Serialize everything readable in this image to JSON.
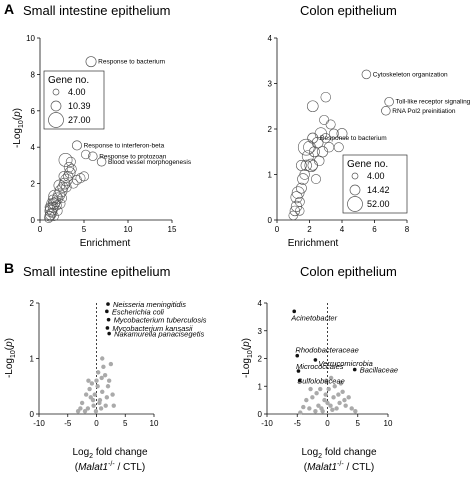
{
  "panels": {
    "A": {
      "letter": "A"
    },
    "B": {
      "letter": "B"
    }
  },
  "chart_data": [
    {
      "id": "a1",
      "type": "scatter",
      "title": "Small intestine epithelium",
      "xlabel": "Enrichment",
      "ylabel_main": "-Log",
      "ylabel_sub": "10",
      "ylabel_var": "p",
      "xlim": [
        0,
        15
      ],
      "ylim": [
        0,
        10
      ],
      "xticks": [
        0,
        5,
        10,
        15
      ],
      "yticks": [
        0,
        2,
        4,
        6,
        8,
        10
      ],
      "legend": {
        "title": "Gene no.",
        "entries": [
          "4.00",
          "10.39",
          "27.00"
        ]
      },
      "annotated": [
        {
          "x": 5.8,
          "y": 8.7,
          "size": 7,
          "label": "Response to bacterium"
        },
        {
          "x": 4.2,
          "y": 4.1,
          "size": 5,
          "label": "Response to interferon-beta"
        },
        {
          "x": 6.0,
          "y": 3.5,
          "size": 4,
          "label": "Response to protozoan"
        },
        {
          "x": 7.0,
          "y": 3.2,
          "size": 4,
          "label": "Blood vessel morphogenesis"
        }
      ],
      "points": [
        [
          1.0,
          0.1,
          4
        ],
        [
          1.1,
          0.2,
          6
        ],
        [
          1.2,
          0.3,
          8
        ],
        [
          1.2,
          0.5,
          10
        ],
        [
          1.3,
          0.6,
          12
        ],
        [
          1.4,
          0.4,
          5
        ],
        [
          1.5,
          0.7,
          7
        ],
        [
          1.6,
          0.9,
          9
        ],
        [
          1.8,
          1.0,
          6
        ],
        [
          2.0,
          1.2,
          8
        ],
        [
          2.2,
          1.4,
          10
        ],
        [
          2.4,
          1.6,
          12
        ],
        [
          1.7,
          1.3,
          14
        ],
        [
          2.6,
          1.8,
          7
        ],
        [
          2.8,
          2.0,
          9
        ],
        [
          3.0,
          2.2,
          11
        ],
        [
          3.2,
          2.4,
          6
        ],
        [
          3.4,
          2.6,
          8
        ],
        [
          3.6,
          2.8,
          5
        ],
        [
          3.0,
          1.8,
          6
        ],
        [
          2.5,
          1.2,
          5
        ],
        [
          1.9,
          0.8,
          5
        ],
        [
          1.5,
          1.1,
          7
        ],
        [
          1.3,
          0.9,
          6
        ],
        [
          2.9,
          3.3,
          16
        ],
        [
          3.3,
          2.9,
          6
        ],
        [
          4.2,
          2.2,
          5
        ],
        [
          4.6,
          2.3,
          5
        ],
        [
          5.0,
          2.4,
          5
        ],
        [
          3.8,
          2.0,
          5
        ],
        [
          2.2,
          1.9,
          9
        ],
        [
          1.1,
          0.7,
          5
        ],
        [
          2.7,
          2.4,
          6
        ],
        [
          3.5,
          3.2,
          5
        ],
        [
          5.2,
          3.6,
          4
        ],
        [
          1.6,
          0.2,
          4
        ],
        [
          2.0,
          0.5,
          5
        ],
        [
          2.3,
          0.9,
          6
        ]
      ]
    },
    {
      "id": "a2",
      "type": "scatter",
      "title": "Colon epithelium",
      "xlabel": "Enrichment",
      "ylabel_main": "",
      "ylabel_sub": "",
      "ylabel_var": "",
      "xlim": [
        0,
        8
      ],
      "ylim": [
        0,
        4
      ],
      "xticks": [
        0,
        2,
        4,
        6,
        8
      ],
      "yticks": [
        0,
        1,
        2,
        3,
        4
      ],
      "legend": {
        "title": "Gene no.",
        "entries": [
          "4.00",
          "14.42",
          "52.00"
        ]
      },
      "annotated": [
        {
          "x": 5.5,
          "y": 3.2,
          "size": 4,
          "label": "Cytoskeleton organization"
        },
        {
          "x": 6.9,
          "y": 2.6,
          "size": 4,
          "label": "Toll-like receptor signaling"
        },
        {
          "x": 6.7,
          "y": 2.4,
          "size": 4,
          "label": "RNA Pol2 preinitiation"
        },
        {
          "x": 2.2,
          "y": 1.8,
          "size": 7,
          "label": "Response to bacterium"
        }
      ],
      "points": [
        [
          1.0,
          0.1,
          4
        ],
        [
          1.1,
          0.2,
          6
        ],
        [
          1.2,
          0.3,
          8
        ],
        [
          1.2,
          0.5,
          10
        ],
        [
          1.3,
          0.6,
          12
        ],
        [
          1.4,
          0.4,
          5
        ],
        [
          1.5,
          0.7,
          7
        ],
        [
          1.6,
          0.9,
          9
        ],
        [
          1.7,
          1.0,
          6
        ],
        [
          1.8,
          1.2,
          8
        ],
        [
          1.9,
          1.4,
          10
        ],
        [
          2.0,
          1.6,
          12
        ],
        [
          2.1,
          1.2,
          14
        ],
        [
          2.3,
          1.5,
          7
        ],
        [
          2.5,
          1.7,
          9
        ],
        [
          2.7,
          1.9,
          11
        ],
        [
          2.6,
          1.3,
          6
        ],
        [
          2.8,
          1.5,
          8
        ],
        [
          3.0,
          1.8,
          5
        ],
        [
          3.2,
          1.6,
          6
        ],
        [
          3.5,
          1.9,
          5
        ],
        [
          3.3,
          2.1,
          5
        ],
        [
          4.0,
          1.9,
          7
        ],
        [
          2.2,
          2.5,
          9
        ],
        [
          3.0,
          2.7,
          6
        ],
        [
          1.8,
          1.6,
          28
        ],
        [
          2.2,
          1.2,
          6
        ],
        [
          2.4,
          0.9,
          5
        ],
        [
          1.5,
          1.2,
          7
        ],
        [
          2.9,
          2.2,
          5
        ],
        [
          3.8,
          1.6,
          5
        ],
        [
          1.4,
          0.2,
          4
        ]
      ]
    },
    {
      "id": "b1",
      "type": "scatter",
      "title": "Small intestine epithelium",
      "xlabel_main": "Log",
      "xlabel_sub": "2",
      "xlabel_rest": " fold change",
      "xlabel2_gene": "Malat1",
      "xlabel2_sup": "-/-",
      "xlabel2_rest": " / CTL)",
      "xlabel2_open": "(",
      "ylabel_main": "-Log",
      "ylabel_sub": "10",
      "ylabel_var": "p",
      "xlim": [
        -10,
        10
      ],
      "ylim": [
        0,
        2
      ],
      "xticks": [
        -10,
        -5,
        0,
        5,
        10
      ],
      "yticks": [
        0,
        1,
        2
      ],
      "highlighted": [
        {
          "x": 2.0,
          "y": 1.98,
          "label": "Neisseria meningitidis"
        },
        {
          "x": 1.8,
          "y": 1.85,
          "label": "Escherichia coli"
        },
        {
          "x": 2.1,
          "y": 1.7,
          "label": "Mycobacterium tuberculosis"
        },
        {
          "x": 1.9,
          "y": 1.55,
          "label": "Mycobacterium kansasii"
        },
        {
          "x": 2.2,
          "y": 1.45,
          "label": "Nakamurella panacisegetis"
        }
      ],
      "background": [
        [
          -1.5,
          0.1
        ],
        [
          -1.0,
          0.3
        ],
        [
          -0.5,
          0.15
        ],
        [
          0.5,
          0.2
        ],
        [
          1.0,
          0.4
        ],
        [
          -2.0,
          0.05
        ],
        [
          0.2,
          0.5
        ],
        [
          1.5,
          0.7
        ],
        [
          -1.2,
          0.45
        ],
        [
          -0.3,
          0.35
        ],
        [
          0.8,
          0.1
        ],
        [
          1.8,
          0.3
        ],
        [
          -2.5,
          0.2
        ],
        [
          2.2,
          0.6
        ],
        [
          0.0,
          0.6
        ],
        [
          -0.8,
          0.55
        ],
        [
          1.2,
          0.85
        ],
        [
          2.5,
          0.9
        ],
        [
          -1.8,
          0.35
        ],
        [
          0.6,
          0.25
        ],
        [
          -0.1,
          0.05
        ],
        [
          1.6,
          0.15
        ],
        [
          2.8,
          0.35
        ],
        [
          -2.8,
          0.1
        ],
        [
          0.3,
          0.75
        ],
        [
          -0.6,
          0.25
        ],
        [
          1.0,
          1.0
        ],
        [
          -1.4,
          0.6
        ],
        [
          2.0,
          0.5
        ],
        [
          3.0,
          0.15
        ],
        [
          -3.2,
          0.05
        ],
        [
          0.9,
          0.65
        ]
      ]
    },
    {
      "id": "b2",
      "type": "scatter",
      "title": "Colon epithelium",
      "xlabel_main": "Log",
      "xlabel_sub": "2",
      "xlabel_rest": " fold change",
      "xlabel2_gene": "Malat1",
      "xlabel2_sup": "-/-",
      "xlabel2_rest": " / CTL)",
      "xlabel2_open": "(",
      "ylabel_main": "-Log",
      "ylabel_sub": "10",
      "ylabel_var": "p",
      "xlim": [
        -10,
        10
      ],
      "ylim": [
        0,
        4
      ],
      "xticks": [
        -10,
        -5,
        0,
        5,
        10
      ],
      "yticks": [
        0,
        1,
        2,
        3,
        4
      ],
      "highlighted": [
        {
          "x": -5.5,
          "y": 3.7,
          "label": "Acinetobacter"
        },
        {
          "x": -5.0,
          "y": 2.1,
          "label": "Rhodobacteraceae"
        },
        {
          "x": -2.0,
          "y": 1.95,
          "label": "Verrucomicrobia"
        },
        {
          "x": -4.8,
          "y": 1.55,
          "label": "Micrococcales"
        },
        {
          "x": -4.6,
          "y": 1.2,
          "label": "Sulfolobaceae"
        },
        {
          "x": 4.5,
          "y": 1.6,
          "label": "Bacillaceae"
        }
      ],
      "background": [
        [
          -2.0,
          0.1
        ],
        [
          -1.5,
          0.3
        ],
        [
          -1.0,
          0.2
        ],
        [
          -0.5,
          0.5
        ],
        [
          0.5,
          0.3
        ],
        [
          1.0,
          0.6
        ],
        [
          1.5,
          0.2
        ],
        [
          2.0,
          0.4
        ],
        [
          -2.5,
          0.6
        ],
        [
          -3.0,
          0.2
        ],
        [
          2.5,
          0.8
        ],
        [
          3.0,
          0.3
        ],
        [
          0.2,
          0.9
        ],
        [
          -0.3,
          0.7
        ],
        [
          1.2,
          1.0
        ],
        [
          -1.2,
          0.9
        ],
        [
          -3.5,
          0.5
        ],
        [
          3.5,
          0.6
        ],
        [
          0.8,
          0.15
        ],
        [
          -0.8,
          0.1
        ],
        [
          2.2,
          1.1
        ],
        [
          -4.0,
          0.25
        ],
        [
          4.0,
          0.2
        ],
        [
          0.0,
          0.4
        ],
        [
          1.8,
          0.7
        ],
        [
          -1.8,
          0.75
        ],
        [
          -0.2,
          1.2
        ],
        [
          0.6,
          1.3
        ],
        [
          2.8,
          0.5
        ],
        [
          -2.8,
          0.9
        ],
        [
          4.6,
          0.1
        ],
        [
          -4.5,
          0.05
        ]
      ]
    }
  ]
}
